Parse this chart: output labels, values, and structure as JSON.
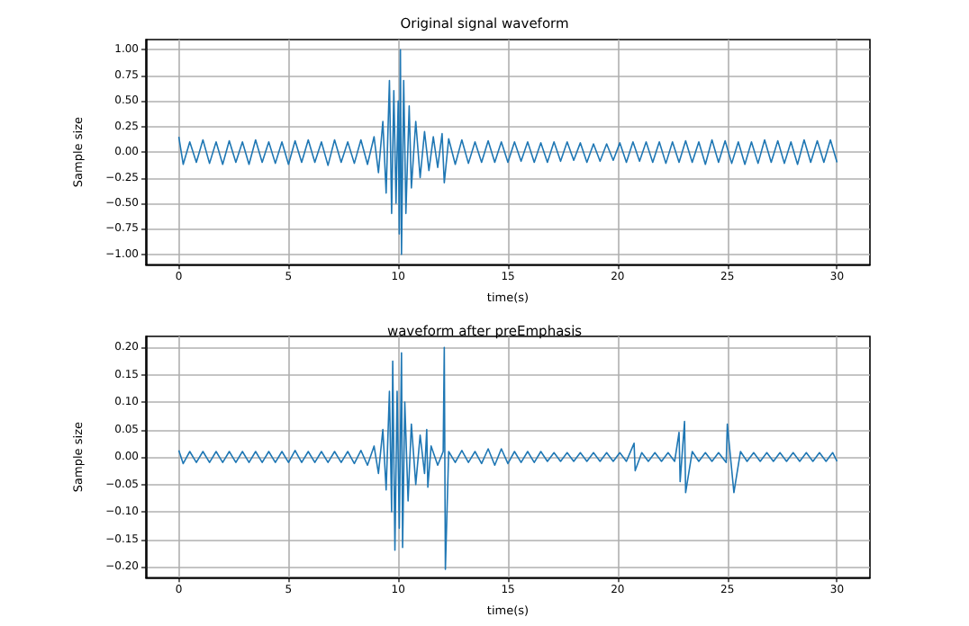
{
  "chart_data": [
    {
      "type": "line",
      "title": "Original signal waveform",
      "xlabel": "time(s)",
      "ylabel": "Sample size",
      "grid": true,
      "xlim": [
        -1.5,
        31.5
      ],
      "xticks": [
        0,
        5,
        10,
        15,
        20,
        25,
        30
      ],
      "ylim": [
        -1.1,
        1.1
      ],
      "yticks": [
        {
          "value": -1,
          "label": "−1.00"
        },
        {
          "value": -0.75,
          "label": "−0.75"
        },
        {
          "value": -0.5,
          "label": "−0.50"
        },
        {
          "value": -0.25,
          "label": "−0.25"
        },
        {
          "value": 0,
          "label": "0.00"
        },
        {
          "value": 0.25,
          "label": "0.25"
        },
        {
          "value": 0.5,
          "label": "0.50"
        },
        {
          "value": 0.75,
          "label": "0.75"
        },
        {
          "value": 1,
          "label": "1.00"
        }
      ],
      "series": [
        {
          "color": "#1f77b4",
          "x": [
            0,
            0.2,
            0.5,
            0.8,
            1.1,
            1.4,
            1.7,
            2.0,
            2.3,
            2.6,
            2.9,
            3.2,
            3.5,
            3.8,
            4.1,
            4.4,
            4.7,
            5.0,
            5.3,
            5.6,
            5.9,
            6.2,
            6.5,
            6.8,
            7.1,
            7.4,
            7.7,
            8.0,
            8.3,
            8.6,
            8.9,
            9.1,
            9.3,
            9.45,
            9.6,
            9.7,
            9.8,
            9.9,
            10.0,
            10.05,
            10.1,
            10.15,
            10.25,
            10.35,
            10.5,
            10.6,
            10.8,
            11.0,
            11.2,
            11.4,
            11.6,
            11.8,
            12.0,
            12.1,
            12.3,
            12.6,
            12.9,
            13.2,
            13.5,
            13.8,
            14.1,
            14.4,
            14.7,
            15.0,
            15.3,
            15.6,
            15.9,
            16.2,
            16.5,
            16.8,
            17.1,
            17.4,
            17.7,
            18.0,
            18.3,
            18.6,
            18.9,
            19.2,
            19.5,
            19.8,
            20.1,
            20.4,
            20.7,
            21.0,
            21.3,
            21.6,
            21.9,
            22.2,
            22.5,
            22.8,
            23.1,
            23.4,
            23.7,
            24.0,
            24.3,
            24.6,
            24.9,
            25.2,
            25.5,
            25.8,
            26.1,
            26.4,
            26.7,
            27.0,
            27.3,
            27.6,
            27.9,
            28.2,
            28.5,
            28.8,
            29.1,
            29.4,
            29.7,
            30.0
          ],
          "values": [
            0.15,
            -0.12,
            0.1,
            -0.1,
            0.12,
            -0.11,
            0.1,
            -0.12,
            0.11,
            -0.1,
            0.1,
            -0.12,
            0.12,
            -0.1,
            0.1,
            -0.11,
            0.1,
            -0.12,
            0.11,
            -0.1,
            0.12,
            -0.1,
            0.1,
            -0.13,
            0.12,
            -0.1,
            0.1,
            -0.11,
            0.12,
            -0.12,
            0.15,
            -0.2,
            0.3,
            -0.4,
            0.7,
            -0.6,
            0.6,
            -0.5,
            0.5,
            -0.8,
            1.0,
            -1.0,
            0.7,
            -0.6,
            0.45,
            -0.35,
            0.3,
            -0.25,
            0.2,
            -0.18,
            0.15,
            -0.15,
            0.18,
            -0.3,
            0.13,
            -0.12,
            0.12,
            -0.11,
            0.1,
            -0.1,
            0.11,
            -0.1,
            0.1,
            -0.1,
            0.1,
            -0.09,
            0.1,
            -0.1,
            0.09,
            -0.1,
            0.1,
            -0.09,
            0.1,
            -0.08,
            0.09,
            -0.1,
            0.08,
            -0.09,
            0.08,
            -0.08,
            0.09,
            -0.1,
            0.1,
            -0.09,
            0.1,
            -0.1,
            0.1,
            -0.11,
            0.1,
            -0.1,
            0.11,
            -0.1,
            0.1,
            -0.12,
            0.12,
            -0.1,
            0.11,
            -0.11,
            0.1,
            -0.12,
            0.1,
            -0.11,
            0.12,
            -0.1,
            0.11,
            -0.11,
            0.1,
            -0.12,
            0.12,
            -0.1,
            0.11,
            -0.1,
            0.12,
            -0.1
          ]
        }
      ]
    },
    {
      "type": "line",
      "title": "waveform after preEmphasis",
      "xlabel": "time(s)",
      "ylabel": "Sample size",
      "grid": true,
      "xlim": [
        -1.5,
        31.5
      ],
      "xticks": [
        0,
        5,
        10,
        15,
        20,
        25,
        30
      ],
      "ylim": [
        -0.22,
        0.22
      ],
      "yticks": [
        {
          "value": -0.2,
          "label": "−0.20"
        },
        {
          "value": -0.15,
          "label": "−0.15"
        },
        {
          "value": -0.1,
          "label": "−0.10"
        },
        {
          "value": -0.05,
          "label": "−0.05"
        },
        {
          "value": 0,
          "label": "0.00"
        },
        {
          "value": 0.05,
          "label": "0.05"
        },
        {
          "value": 0.1,
          "label": "0.10"
        },
        {
          "value": 0.15,
          "label": "0.15"
        },
        {
          "value": 0.2,
          "label": "0.20"
        }
      ],
      "series": [
        {
          "color": "#1f77b4",
          "x": [
            0,
            0.2,
            0.5,
            0.8,
            1.1,
            1.4,
            1.7,
            2.0,
            2.3,
            2.6,
            2.9,
            3.2,
            3.5,
            3.8,
            4.1,
            4.4,
            4.7,
            5.0,
            5.3,
            5.6,
            5.9,
            6.2,
            6.5,
            6.8,
            7.1,
            7.4,
            7.7,
            8.0,
            8.3,
            8.6,
            8.9,
            9.1,
            9.3,
            9.45,
            9.6,
            9.7,
            9.75,
            9.85,
            9.95,
            10.05,
            10.15,
            10.2,
            10.3,
            10.45,
            10.6,
            10.8,
            11.0,
            11.2,
            11.3,
            11.35,
            11.5,
            11.8,
            12.05,
            12.1,
            12.15,
            12.3,
            12.6,
            12.9,
            13.2,
            13.5,
            13.8,
            14.1,
            14.4,
            14.7,
            15.0,
            15.3,
            15.6,
            15.9,
            16.2,
            16.5,
            16.8,
            17.1,
            17.4,
            17.7,
            18.0,
            18.3,
            18.6,
            18.9,
            19.2,
            19.5,
            19.8,
            20.1,
            20.4,
            20.75,
            20.8,
            21.1,
            21.4,
            21.7,
            22.0,
            22.3,
            22.6,
            22.8,
            22.85,
            23.05,
            23.1,
            23.4,
            23.7,
            24.0,
            24.3,
            24.6,
            24.95,
            25.0,
            25.3,
            25.6,
            25.9,
            26.2,
            26.5,
            26.8,
            27.1,
            27.4,
            27.7,
            28.0,
            28.3,
            28.6,
            28.9,
            29.2,
            29.5,
            29.8,
            30.0
          ],
          "values": [
            0.012,
            -0.012,
            0.01,
            -0.01,
            0.01,
            -0.01,
            0.01,
            -0.01,
            0.01,
            -0.01,
            0.01,
            -0.01,
            0.01,
            -0.01,
            0.01,
            -0.01,
            0.01,
            -0.01,
            0.012,
            -0.01,
            0.01,
            -0.01,
            0.01,
            -0.01,
            0.01,
            -0.01,
            0.01,
            -0.012,
            0.012,
            -0.015,
            0.02,
            -0.03,
            0.05,
            -0.06,
            0.12,
            -0.1,
            0.175,
            -0.17,
            0.12,
            -0.13,
            0.19,
            -0.165,
            0.1,
            -0.08,
            0.06,
            -0.05,
            0.04,
            -0.03,
            0.05,
            -0.055,
            0.02,
            -0.015,
            0.01,
            0.2,
            -0.205,
            0.01,
            -0.01,
            0.012,
            -0.01,
            0.01,
            -0.012,
            0.015,
            -0.015,
            0.015,
            -0.012,
            0.01,
            -0.01,
            0.01,
            -0.01,
            0.01,
            -0.008,
            0.008,
            -0.008,
            0.008,
            -0.008,
            0.008,
            -0.008,
            0.008,
            -0.008,
            0.008,
            -0.008,
            0.008,
            -0.008,
            0.025,
            -0.025,
            0.008,
            -0.008,
            0.008,
            -0.008,
            0.008,
            -0.008,
            0.045,
            -0.045,
            0.065,
            -0.065,
            0.01,
            -0.008,
            0.008,
            -0.008,
            0.008,
            -0.01,
            0.06,
            -0.065,
            0.01,
            -0.008,
            0.008,
            -0.008,
            0.008,
            -0.008,
            0.008,
            -0.008,
            0.008,
            -0.008,
            0.008,
            -0.008,
            0.008,
            -0.008,
            0.008,
            -0.008
          ]
        }
      ]
    }
  ]
}
